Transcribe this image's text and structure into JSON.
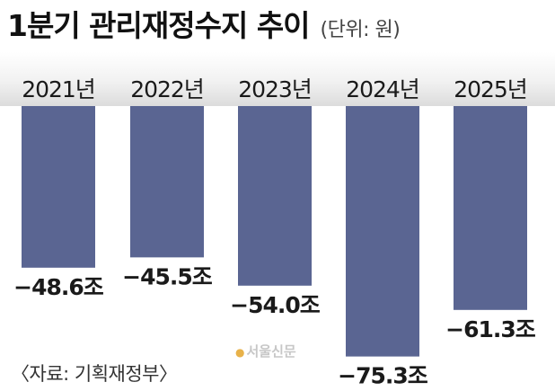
{
  "header": {
    "title": "1분기 관리재정수지 추이",
    "unit": "(단위: 원)"
  },
  "footer": {
    "source": "〈자료: 기획재정부〉",
    "watermark": "서울신문"
  },
  "colors": {
    "bar": "#5a6592",
    "header_band": "#e6e6e6"
  },
  "chart_data": {
    "type": "bar",
    "title": "1분기 관리재정수지 추이",
    "unit_label": "(단위: 원)",
    "categories": [
      "2021년",
      "2022년",
      "2023년",
      "2024년",
      "2025년"
    ],
    "values": [
      -48.6,
      -45.5,
      -54.0,
      -75.3,
      -61.3
    ],
    "value_labels": [
      "−48.6조",
      "−45.5조",
      "−54.0조",
      "−75.3조",
      "−61.3조"
    ],
    "ylim": [
      -80,
      0
    ],
    "grid": false,
    "legend": "none"
  }
}
